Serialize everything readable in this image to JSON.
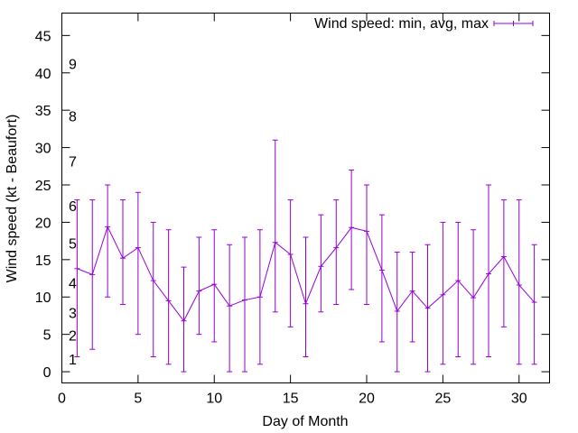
{
  "chart_data": {
    "type": "line",
    "title": "",
    "xlabel": "Day of Month",
    "ylabel": "Wind speed (kt - Beaufort)",
    "xlim": [
      0,
      32
    ],
    "ylim": [
      -1.5,
      48
    ],
    "x_ticks": [
      0,
      5,
      10,
      15,
      20,
      25,
      30
    ],
    "y_ticks": [
      0,
      5,
      10,
      15,
      20,
      25,
      30,
      35,
      40,
      45
    ],
    "grid": false,
    "legend_position": "top-right",
    "series": [
      {
        "name": "Wind speed: min, avg, max",
        "color": "#9400d3",
        "style": "errorbars-with-line",
        "x": [
          1,
          2,
          3,
          4,
          5,
          6,
          7,
          8,
          9,
          10,
          11,
          12,
          13,
          14,
          15,
          16,
          17,
          18,
          19,
          20,
          21,
          22,
          23,
          24,
          25,
          26,
          27,
          28,
          29,
          30,
          31
        ],
        "avg": [
          13.8,
          13,
          19.4,
          15.2,
          16.6,
          12.2,
          9.5,
          6.8,
          10.8,
          11.7,
          8.8,
          9.6,
          10,
          17.3,
          15.7,
          9.1,
          14.1,
          16.6,
          19.3,
          18.8,
          13.6,
          8.1,
          10.8,
          8.5,
          10.3,
          12.2,
          9.9,
          13.1,
          15.4,
          11.6,
          9.3
        ],
        "min": [
          2,
          3,
          10,
          9,
          5,
          2,
          1,
          0,
          5,
          4,
          0,
          0,
          1,
          8,
          6,
          2,
          8,
          9,
          11,
          9,
          4,
          0,
          4,
          0,
          1,
          2,
          1,
          2,
          6,
          1,
          1
        ],
        "max": [
          23,
          23,
          25,
          23,
          24,
          20,
          19,
          14,
          18,
          19,
          17,
          18,
          19,
          31,
          23,
          18,
          21,
          23,
          27,
          25,
          21,
          16,
          16,
          17,
          20,
          20,
          19,
          25,
          23,
          23,
          17
        ]
      }
    ],
    "annotations": [
      {
        "text": "1",
        "y": 1
      },
      {
        "text": "2",
        "y": 4.2
      },
      {
        "text": "3",
        "y": 7.2
      },
      {
        "text": "4",
        "y": 11.2
      },
      {
        "text": "5",
        "y": 16.5
      },
      {
        "text": "6",
        "y": 21.5
      },
      {
        "text": "7",
        "y": 27.5
      },
      {
        "text": "8",
        "y": 33.5
      },
      {
        "text": "9",
        "y": 40.5
      }
    ]
  }
}
